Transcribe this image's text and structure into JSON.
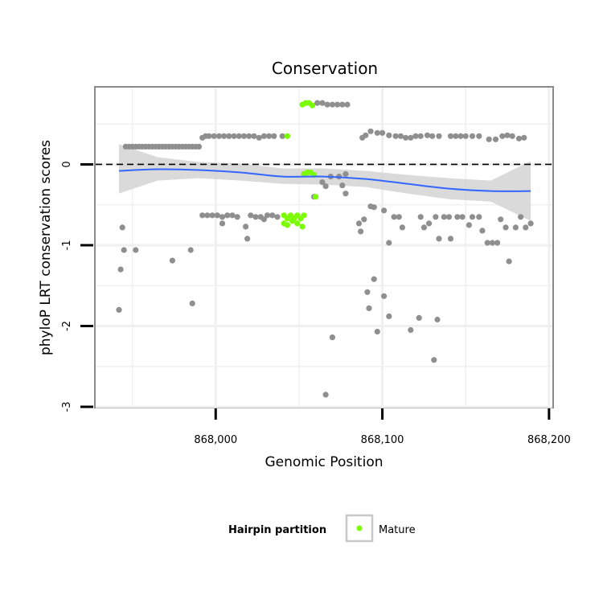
{
  "chart_data": {
    "type": "scatter",
    "title": "Conservation",
    "xlabel": "Genomic Position",
    "ylabel": "phyloP LRT conservation scores",
    "xlim": [
      867928,
      868202
    ],
    "ylim": [
      -3,
      0.95
    ],
    "x_ticks": [
      868000,
      868100,
      868200
    ],
    "x_tick_labels": [
      "868,000",
      "868,100",
      "868,200"
    ],
    "y_ticks": [
      -3,
      -2,
      -1,
      0
    ],
    "y_tick_labels": [
      "-3",
      "-2",
      "-1",
      "0"
    ],
    "reference_line": {
      "y": 0,
      "style": "dashed"
    },
    "grid": true,
    "legend": {
      "title": "Hairpin partition",
      "entries": [
        "Mature"
      ],
      "position": "bottom"
    },
    "colors": {
      "other": "#8f8f8f",
      "mature": "#7cfc00",
      "trend": "#3366ff",
      "band": "#d3d3d3"
    },
    "series": [
      {
        "name": "",
        "color": "#8f8f8f",
        "points": [
          [
            867942,
            -1.8
          ],
          [
            867943,
            -1.3
          ],
          [
            867944,
            -0.78
          ],
          [
            867945,
            -1.06
          ],
          [
            867952,
            -1.06
          ],
          [
            867974,
            -1.19
          ],
          [
            867985,
            -1.06
          ],
          [
            867986,
            -1.72
          ],
          [
            867946,
            0.22
          ],
          [
            867948,
            0.22
          ],
          [
            867950,
            0.22
          ],
          [
            867952,
            0.22
          ],
          [
            867954,
            0.22
          ],
          [
            867956,
            0.22
          ],
          [
            867958,
            0.22
          ],
          [
            867960,
            0.22
          ],
          [
            867962,
            0.22
          ],
          [
            867964,
            0.22
          ],
          [
            867966,
            0.22
          ],
          [
            867968,
            0.22
          ],
          [
            867970,
            0.22
          ],
          [
            867972,
            0.22
          ],
          [
            867974,
            0.22
          ],
          [
            867976,
            0.22
          ],
          [
            867978,
            0.22
          ],
          [
            867980,
            0.22
          ],
          [
            867982,
            0.22
          ],
          [
            867984,
            0.22
          ],
          [
            867986,
            0.22
          ],
          [
            867988,
            0.22
          ],
          [
            867990,
            0.22
          ],
          [
            867992,
            0.33
          ],
          [
            867994,
            0.35
          ],
          [
            867996,
            0.35
          ],
          [
            867999,
            0.35
          ],
          [
            868002,
            0.35
          ],
          [
            868005,
            0.35
          ],
          [
            868008,
            0.35
          ],
          [
            868011,
            0.35
          ],
          [
            868014,
            0.35
          ],
          [
            868017,
            0.35
          ],
          [
            868020,
            0.35
          ],
          [
            868023,
            0.35
          ],
          [
            868026,
            0.33
          ],
          [
            868029,
            0.35
          ],
          [
            868032,
            0.35
          ],
          [
            868035,
            0.35
          ],
          [
            868040,
            0.35
          ],
          [
            867992,
            -0.63
          ],
          [
            867995,
            -0.63
          ],
          [
            867998,
            -0.63
          ],
          [
            868001,
            -0.63
          ],
          [
            868004,
            -0.65
          ],
          [
            868007,
            -0.63
          ],
          [
            868010,
            -0.63
          ],
          [
            868013,
            -0.65
          ],
          [
            868021,
            -0.63
          ],
          [
            868024,
            -0.65
          ],
          [
            868027,
            -0.65
          ],
          [
            868031,
            -0.63
          ],
          [
            868034,
            -0.63
          ],
          [
            868037,
            -0.65
          ],
          [
            868004,
            -0.73
          ],
          [
            868018,
            -0.77
          ],
          [
            868019,
            -0.92
          ],
          [
            868029,
            -0.68
          ],
          [
            868059,
            -0.4
          ],
          [
            868064,
            -0.22
          ],
          [
            868066,
            -0.27
          ],
          [
            868069,
            -0.15
          ],
          [
            868074,
            -0.15
          ],
          [
            868076,
            -0.26
          ],
          [
            868078,
            -0.36
          ],
          [
            868061,
            0.76
          ],
          [
            868064,
            0.76
          ],
          [
            868067,
            0.74
          ],
          [
            868070,
            0.74
          ],
          [
            868073,
            0.74
          ],
          [
            868076,
            0.74
          ],
          [
            868079,
            0.74
          ],
          [
            868088,
            0.33
          ],
          [
            868090,
            0.36
          ],
          [
            868093,
            0.41
          ],
          [
            868097,
            0.39
          ],
          [
            868100,
            0.39
          ],
          [
            868104,
            0.36
          ],
          [
            868108,
            0.35
          ],
          [
            868111,
            0.35
          ],
          [
            868114,
            0.33
          ],
          [
            868117,
            0.33
          ],
          [
            868120,
            0.35
          ],
          [
            868123,
            0.35
          ],
          [
            868127,
            0.36
          ],
          [
            868130,
            0.35
          ],
          [
            868134,
            0.35
          ],
          [
            868141,
            0.35
          ],
          [
            868144,
            0.35
          ],
          [
            868147,
            0.35
          ],
          [
            868150,
            0.35
          ],
          [
            868154,
            0.35
          ],
          [
            868158,
            0.35
          ],
          [
            868164,
            0.31
          ],
          [
            868168,
            0.31
          ],
          [
            868172,
            0.35
          ],
          [
            868175,
            0.36
          ],
          [
            868178,
            0.35
          ],
          [
            868182,
            0.32
          ],
          [
            868185,
            0.33
          ],
          [
            868086,
            -0.73
          ],
          [
            868087,
            -0.83
          ],
          [
            868089,
            -0.68
          ],
          [
            868093,
            -0.52
          ],
          [
            868095,
            -0.53
          ],
          [
            868101,
            -0.57
          ],
          [
            868104,
            -0.97
          ],
          [
            868107,
            -0.65
          ],
          [
            868110,
            -0.65
          ],
          [
            868112,
            -0.78
          ],
          [
            868123,
            -0.65
          ],
          [
            868125,
            -0.78
          ],
          [
            868128,
            -0.73
          ],
          [
            868132,
            -0.65
          ],
          [
            868134,
            -0.92
          ],
          [
            868137,
            -0.65
          ],
          [
            868140,
            -0.65
          ],
          [
            868141,
            -0.92
          ],
          [
            868145,
            -0.65
          ],
          [
            868148,
            -0.65
          ],
          [
            868152,
            -0.75
          ],
          [
            868154,
            -0.65
          ],
          [
            868158,
            -0.65
          ],
          [
            868160,
            -0.82
          ],
          [
            868163,
            -0.97
          ],
          [
            868166,
            -0.97
          ],
          [
            868169,
            -0.97
          ],
          [
            868171,
            -0.68
          ],
          [
            868174,
            -0.78
          ],
          [
            868176,
            -1.2
          ],
          [
            868180,
            -0.78
          ],
          [
            868183,
            -0.65
          ],
          [
            868186,
            -0.78
          ],
          [
            868189,
            -0.73
          ],
          [
            868091,
            -1.58
          ],
          [
            868092,
            -1.78
          ],
          [
            868095,
            -1.42
          ],
          [
            868097,
            -2.07
          ],
          [
            868101,
            -1.63
          ],
          [
            868104,
            -1.88
          ],
          [
            868117,
            -2.05
          ],
          [
            868122,
            -1.9
          ],
          [
            868131,
            -2.42
          ],
          [
            868133,
            -1.92
          ],
          [
            868070,
            -2.14
          ],
          [
            868066,
            -2.85
          ],
          [
            868078,
            -0.12
          ]
        ]
      },
      {
        "name": "Mature",
        "color": "#7cfc00",
        "points": [
          [
            868041,
            -0.63
          ],
          [
            868043,
            -0.67
          ],
          [
            868045,
            -0.63
          ],
          [
            868047,
            -0.67
          ],
          [
            868049,
            -0.63
          ],
          [
            868051,
            -0.67
          ],
          [
            868053,
            -0.63
          ],
          [
            868041,
            -0.73
          ],
          [
            868043,
            -0.75
          ],
          [
            868046,
            -0.7
          ],
          [
            868049,
            -0.73
          ],
          [
            868052,
            -0.77
          ],
          [
            868043,
            0.35
          ],
          [
            868052,
            0.74
          ],
          [
            868054,
            0.76
          ],
          [
            868056,
            0.76
          ],
          [
            868058,
            0.73
          ],
          [
            868053,
            -0.12
          ],
          [
            868055,
            -0.1
          ],
          [
            868057,
            -0.1
          ],
          [
            868059,
            -0.13
          ],
          [
            868060,
            -0.4
          ]
        ]
      }
    ],
    "trend": {
      "x": [
        867942,
        867965,
        867990,
        868015,
        868040,
        868065,
        868090,
        868115,
        868140,
        868165,
        868189
      ],
      "y": [
        -0.08,
        -0.06,
        -0.07,
        -0.1,
        -0.15,
        -0.15,
        -0.18,
        -0.24,
        -0.3,
        -0.33,
        -0.33
      ],
      "lower": [
        -0.36,
        -0.2,
        -0.17,
        -0.2,
        -0.24,
        -0.25,
        -0.28,
        -0.36,
        -0.43,
        -0.46,
        -0.7
      ],
      "upper": [
        0.25,
        0.09,
        0.03,
        0.01,
        -0.05,
        -0.05,
        -0.08,
        -0.13,
        -0.17,
        -0.2,
        0.04
      ]
    }
  }
}
